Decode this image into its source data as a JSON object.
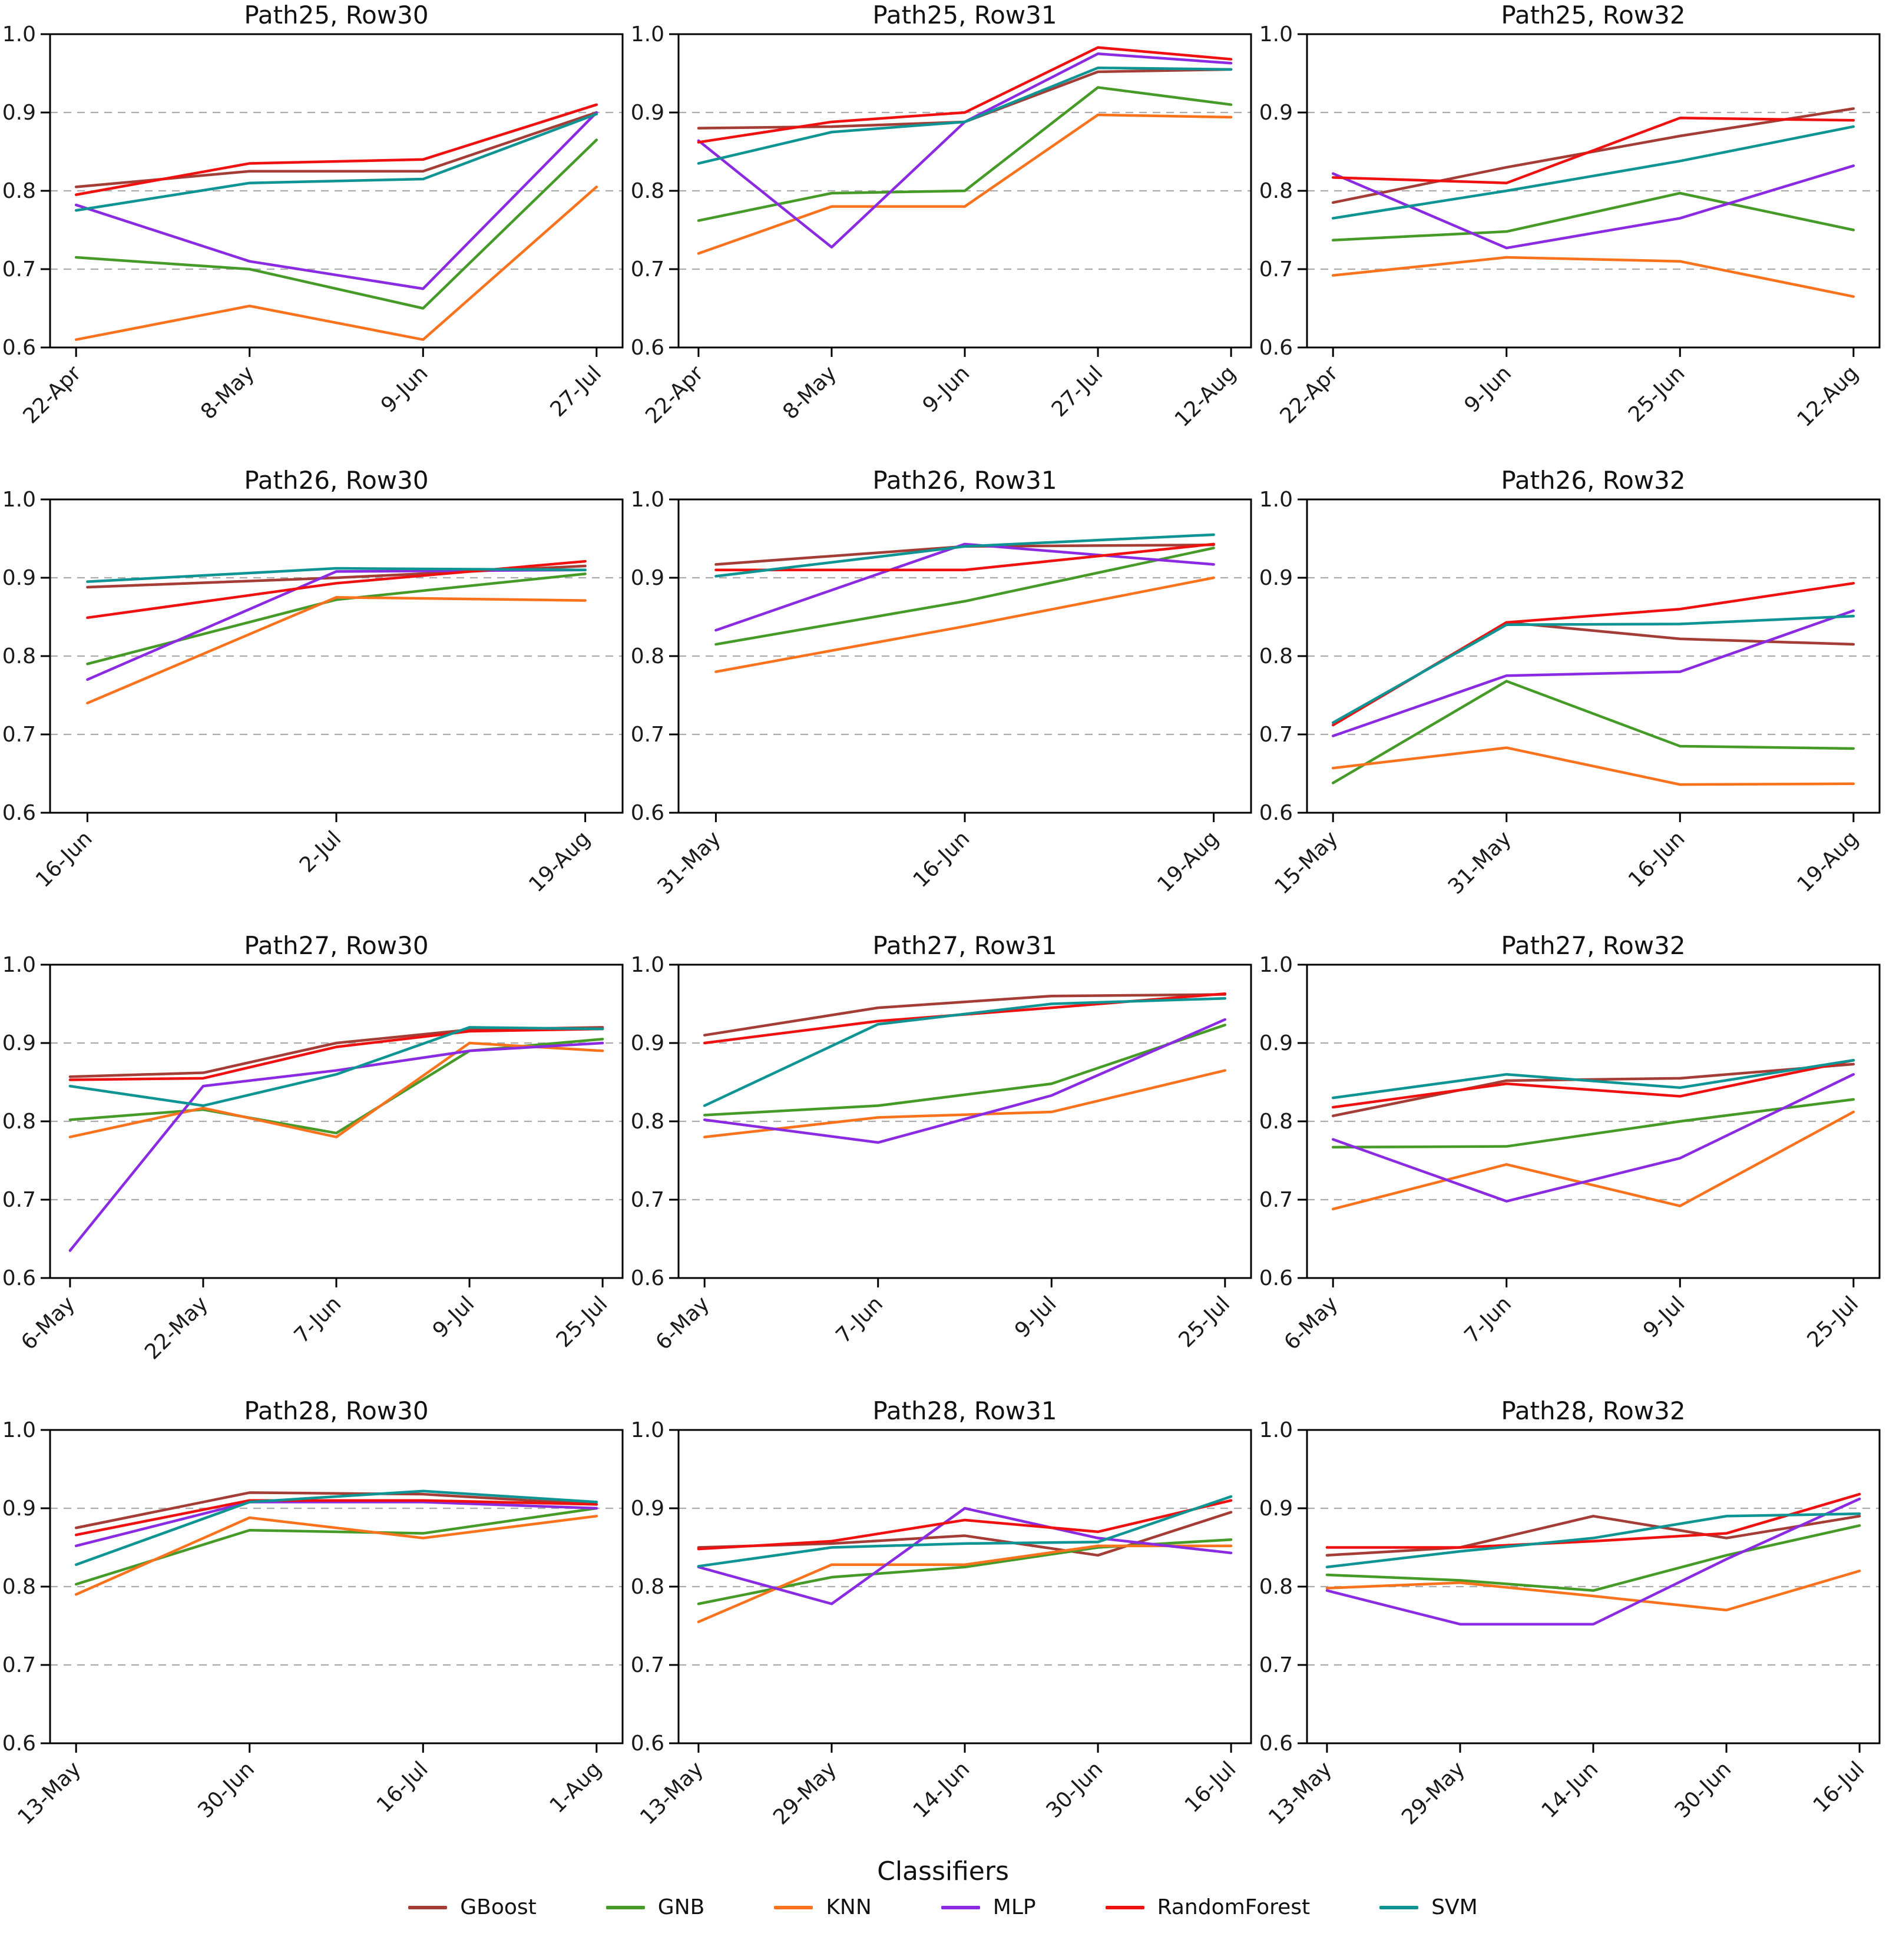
{
  "figure": {
    "xlabel": "Classifiers",
    "ylim": [
      0.6,
      1.0
    ],
    "yticks": [
      "1.0",
      "0.9",
      "0.8",
      "0.7",
      "0.6"
    ],
    "gridlines": [
      0.7,
      0.8,
      0.9
    ],
    "grid_style": "dashed horizontal",
    "legend_position": "bottom center",
    "legend": {
      "entries": [
        {
          "label": "GBoost",
          "color": "#A33D35"
        },
        {
          "label": "GNB",
          "color": "#459A28"
        },
        {
          "label": "KNN",
          "color": "#F9731E"
        },
        {
          "label": "MLP",
          "color": "#8A2BE2"
        },
        {
          "label": "RandomForest",
          "color": "#EF1010"
        },
        {
          "label": "SVM",
          "color": "#0F9494"
        }
      ]
    }
  },
  "chart_data": [
    {
      "type": "line",
      "title": "Path25, Row30",
      "categories": [
        "22-Apr",
        "8-May",
        "9-Jun",
        "27-Jul"
      ],
      "series": [
        {
          "name": "GBoost",
          "values": [
            0.805,
            0.825,
            0.825,
            0.9
          ]
        },
        {
          "name": "GNB",
          "values": [
            0.715,
            0.7,
            0.65,
            0.865
          ]
        },
        {
          "name": "KNN",
          "values": [
            0.61,
            0.653,
            0.61,
            0.805
          ]
        },
        {
          "name": "MLP",
          "values": [
            0.782,
            0.71,
            0.675,
            0.9
          ]
        },
        {
          "name": "RandomForest",
          "values": [
            0.795,
            0.835,
            0.84,
            0.91
          ]
        },
        {
          "name": "SVM",
          "values": [
            0.775,
            0.81,
            0.815,
            0.898
          ]
        }
      ]
    },
    {
      "type": "line",
      "title": "Path25, Row31",
      "categories": [
        "22-Apr",
        "8-May",
        "9-Jun",
        "27-Jul",
        "12-Aug"
      ],
      "series": [
        {
          "name": "GBoost",
          "values": [
            0.88,
            0.882,
            0.888,
            0.952,
            0.955
          ]
        },
        {
          "name": "GNB",
          "values": [
            0.762,
            0.797,
            0.8,
            0.932,
            0.91
          ]
        },
        {
          "name": "KNN",
          "values": [
            0.72,
            0.78,
            0.78,
            0.897,
            0.894
          ]
        },
        {
          "name": "MLP",
          "values": [
            0.864,
            0.728,
            0.888,
            0.975,
            0.963
          ]
        },
        {
          "name": "RandomForest",
          "values": [
            0.862,
            0.888,
            0.9,
            0.983,
            0.968
          ]
        },
        {
          "name": "SVM",
          "values": [
            0.835,
            0.875,
            0.888,
            0.957,
            0.955
          ]
        }
      ]
    },
    {
      "type": "line",
      "title": "Path25, Row32",
      "categories": [
        "22-Apr",
        "9-Jun",
        "25-Jun",
        "12-Aug"
      ],
      "series": [
        {
          "name": "GBoost",
          "values": [
            0.785,
            0.83,
            0.87,
            0.905
          ]
        },
        {
          "name": "GNB",
          "values": [
            0.737,
            0.748,
            0.797,
            0.75
          ]
        },
        {
          "name": "KNN",
          "values": [
            0.692,
            0.715,
            0.71,
            0.665
          ]
        },
        {
          "name": "MLP",
          "values": [
            0.822,
            0.727,
            0.765,
            0.832
          ]
        },
        {
          "name": "RandomForest",
          "values": [
            0.817,
            0.81,
            0.893,
            0.89
          ]
        },
        {
          "name": "SVM",
          "values": [
            0.765,
            0.8,
            0.838,
            0.882
          ]
        }
      ]
    },
    {
      "type": "line",
      "title": "Path26, Row30",
      "categories": [
        "16-Jun",
        "2-Jul",
        "19-Aug"
      ],
      "series": [
        {
          "name": "GBoost",
          "values": [
            0.888,
            0.9,
            0.915
          ]
        },
        {
          "name": "GNB",
          "values": [
            0.79,
            0.872,
            0.905
          ]
        },
        {
          "name": "KNN",
          "values": [
            0.74,
            0.875,
            0.871
          ]
        },
        {
          "name": "MLP",
          "values": [
            0.77,
            0.908,
            0.91
          ]
        },
        {
          "name": "RandomForest",
          "values": [
            0.849,
            0.893,
            0.921
          ]
        },
        {
          "name": "SVM",
          "values": [
            0.895,
            0.912,
            0.91
          ]
        }
      ]
    },
    {
      "type": "line",
      "title": "Path26, Row31",
      "categories": [
        "31-May",
        "16-Jun",
        "19-Aug"
      ],
      "series": [
        {
          "name": "GBoost",
          "values": [
            0.917,
            0.94,
            0.942
          ]
        },
        {
          "name": "GNB",
          "values": [
            0.815,
            0.87,
            0.938
          ]
        },
        {
          "name": "KNN",
          "values": [
            0.78,
            0.838,
            0.9
          ]
        },
        {
          "name": "MLP",
          "values": [
            0.833,
            0.943,
            0.917
          ]
        },
        {
          "name": "RandomForest",
          "values": [
            0.91,
            0.91,
            0.943
          ]
        },
        {
          "name": "SVM",
          "values": [
            0.902,
            0.94,
            0.955
          ]
        }
      ]
    },
    {
      "type": "line",
      "title": "Path26, Row32",
      "categories": [
        "15-May",
        "31-May",
        "16-Jun",
        "19-Aug"
      ],
      "series": [
        {
          "name": "GBoost",
          "values": [
            0.712,
            0.843,
            0.822,
            0.815
          ]
        },
        {
          "name": "GNB",
          "values": [
            0.638,
            0.768,
            0.685,
            0.682
          ]
        },
        {
          "name": "KNN",
          "values": [
            0.657,
            0.683,
            0.636,
            0.637
          ]
        },
        {
          "name": "MLP",
          "values": [
            0.698,
            0.775,
            0.78,
            0.858
          ]
        },
        {
          "name": "RandomForest",
          "values": [
            0.712,
            0.843,
            0.86,
            0.893
          ]
        },
        {
          "name": "SVM",
          "values": [
            0.715,
            0.84,
            0.841,
            0.851
          ]
        }
      ]
    },
    {
      "type": "line",
      "title": "Path27, Row30",
      "categories": [
        "6-May",
        "22-May",
        "7-Jun",
        "9-Jul",
        "25-Jul"
      ],
      "series": [
        {
          "name": "GBoost",
          "values": [
            0.857,
            0.862,
            0.9,
            0.917,
            0.92
          ]
        },
        {
          "name": "GNB",
          "values": [
            0.802,
            0.815,
            0.785,
            0.89,
            0.905
          ]
        },
        {
          "name": "KNN",
          "values": [
            0.78,
            0.817,
            0.78,
            0.9,
            0.89
          ]
        },
        {
          "name": "MLP",
          "values": [
            0.635,
            0.845,
            0.865,
            0.89,
            0.9
          ]
        },
        {
          "name": "RandomForest",
          "values": [
            0.853,
            0.855,
            0.895,
            0.915,
            0.918
          ]
        },
        {
          "name": "SVM",
          "values": [
            0.845,
            0.82,
            0.86,
            0.92,
            0.918
          ]
        }
      ]
    },
    {
      "type": "line",
      "title": "Path27, Row31",
      "categories": [
        "6-May",
        "7-Jun",
        "9-Jul",
        "25-Jul"
      ],
      "series": [
        {
          "name": "GBoost",
          "values": [
            0.91,
            0.945,
            0.96,
            0.962
          ]
        },
        {
          "name": "GNB",
          "values": [
            0.808,
            0.82,
            0.848,
            0.923
          ]
        },
        {
          "name": "KNN",
          "values": [
            0.78,
            0.805,
            0.812,
            0.865
          ]
        },
        {
          "name": "MLP",
          "values": [
            0.802,
            0.773,
            0.833,
            0.93
          ]
        },
        {
          "name": "RandomForest",
          "values": [
            0.9,
            0.928,
            0.945,
            0.963
          ]
        },
        {
          "name": "SVM",
          "values": [
            0.82,
            0.924,
            0.95,
            0.957
          ]
        }
      ]
    },
    {
      "type": "line",
      "title": "Path27, Row32",
      "categories": [
        "6-May",
        "7-Jun",
        "9-Jul",
        "25-Jul"
      ],
      "series": [
        {
          "name": "GBoost",
          "values": [
            0.807,
            0.852,
            0.855,
            0.873
          ]
        },
        {
          "name": "GNB",
          "values": [
            0.767,
            0.768,
            0.8,
            0.828
          ]
        },
        {
          "name": "KNN",
          "values": [
            0.688,
            0.745,
            0.692,
            0.812
          ]
        },
        {
          "name": "MLP",
          "values": [
            0.777,
            0.698,
            0.753,
            0.86
          ]
        },
        {
          "name": "RandomForest",
          "values": [
            0.818,
            0.848,
            0.832,
            0.878
          ]
        },
        {
          "name": "SVM",
          "values": [
            0.83,
            0.86,
            0.843,
            0.878
          ]
        }
      ]
    },
    {
      "type": "line",
      "title": "Path28, Row30",
      "categories": [
        "13-May",
        "30-Jun",
        "16-Jul",
        "1-Aug"
      ],
      "series": [
        {
          "name": "GBoost",
          "values": [
            0.875,
            0.92,
            0.918,
            0.905
          ]
        },
        {
          "name": "GNB",
          "values": [
            0.803,
            0.872,
            0.868,
            0.9
          ]
        },
        {
          "name": "KNN",
          "values": [
            0.79,
            0.888,
            0.862,
            0.89
          ]
        },
        {
          "name": "MLP",
          "values": [
            0.852,
            0.908,
            0.908,
            0.9
          ]
        },
        {
          "name": "RandomForest",
          "values": [
            0.866,
            0.91,
            0.91,
            0.905
          ]
        },
        {
          "name": "SVM",
          "values": [
            0.828,
            0.908,
            0.922,
            0.908
          ]
        }
      ]
    },
    {
      "type": "line",
      "title": "Path28, Row31",
      "categories": [
        "13-May",
        "29-May",
        "14-Jun",
        "30-Jun",
        "16-Jul"
      ],
      "series": [
        {
          "name": "GBoost",
          "values": [
            0.85,
            0.855,
            0.865,
            0.84,
            0.895
          ]
        },
        {
          "name": "GNB",
          "values": [
            0.778,
            0.812,
            0.825,
            0.85,
            0.86
          ]
        },
        {
          "name": "KNN",
          "values": [
            0.755,
            0.828,
            0.828,
            0.852,
            0.852
          ]
        },
        {
          "name": "MLP",
          "values": [
            0.825,
            0.778,
            0.9,
            0.862,
            0.843
          ]
        },
        {
          "name": "RandomForest",
          "values": [
            0.848,
            0.858,
            0.885,
            0.87,
            0.91
          ]
        },
        {
          "name": "SVM",
          "values": [
            0.826,
            0.85,
            0.855,
            0.857,
            0.915
          ]
        }
      ]
    },
    {
      "type": "line",
      "title": "Path28, Row32",
      "categories": [
        "13-May",
        "29-May",
        "14-Jun",
        "30-Jun",
        "16-Jul"
      ],
      "series": [
        {
          "name": "GBoost",
          "values": [
            0.84,
            0.85,
            0.89,
            0.862,
            0.89
          ]
        },
        {
          "name": "GNB",
          "values": [
            0.815,
            0.808,
            0.795,
            0.84,
            0.878
          ]
        },
        {
          "name": "KNN",
          "values": [
            0.798,
            0.805,
            0.788,
            0.77,
            0.82
          ]
        },
        {
          "name": "MLP",
          "values": [
            0.795,
            0.752,
            0.752,
            0.835,
            0.912
          ]
        },
        {
          "name": "RandomForest",
          "values": [
            0.85,
            0.85,
            0.858,
            0.868,
            0.918
          ]
        },
        {
          "name": "SVM",
          "values": [
            0.825,
            0.845,
            0.862,
            0.89,
            0.893
          ]
        }
      ]
    }
  ]
}
